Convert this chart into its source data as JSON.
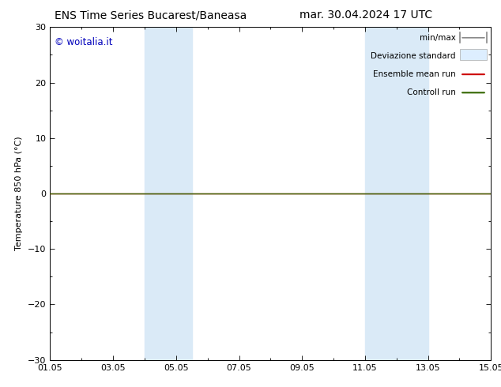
{
  "title_left": "ENS Time Series Bucarest/Baneasa",
  "title_right": "mar. 30.04.2024 17 UTC",
  "ylabel": "Temperature 850 hPa (°C)",
  "ylim": [
    -30,
    30
  ],
  "yticks": [
    -30,
    -20,
    -10,
    0,
    10,
    20,
    30
  ],
  "xlim_start": 0,
  "xlim_end": 14,
  "xtick_labels": [
    "01.05",
    "03.05",
    "05.05",
    "07.05",
    "09.05",
    "11.05",
    "13.05",
    "15.05"
  ],
  "xtick_positions": [
    0,
    2,
    4,
    6,
    8,
    10,
    12,
    14
  ],
  "shaded_bands": [
    {
      "xmin": 3.0,
      "xmax": 4.5,
      "color": "#daeaf7"
    },
    {
      "xmin": 10.0,
      "xmax": 12.0,
      "color": "#daeaf7"
    }
  ],
  "flat_line_y": 0,
  "control_run_color": "#336600",
  "ensemble_mean_color": "#cc0000",
  "watermark_text": "© woitalia.it",
  "watermark_color": "#0000bb",
  "legend_minmax_color": "#888888",
  "legend_std_color": "#ddeeff",
  "bg_color": "#ffffff",
  "grid_color": "#888888",
  "title_fontsize": 10,
  "axis_fontsize": 8,
  "tick_fontsize": 8,
  "legend_fontsize": 7.5
}
